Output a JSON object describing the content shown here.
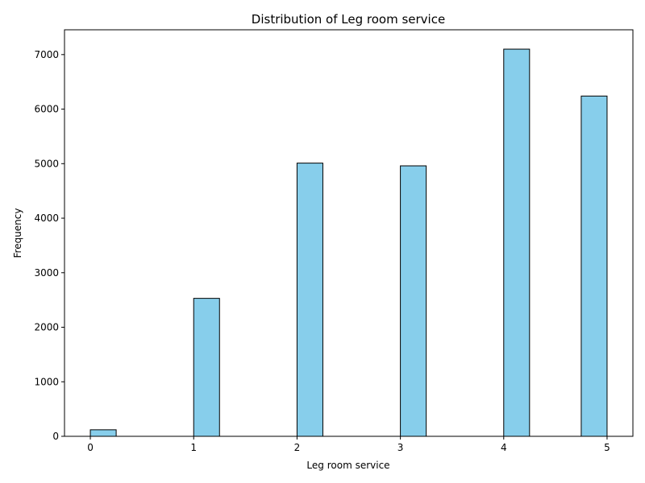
{
  "chart_data": {
    "type": "bar",
    "title": "Distribution of Leg room service",
    "xlabel": "Leg room service",
    "ylabel": "Frequency",
    "bin_edges": [
      0,
      0.25,
      0.5,
      0.75,
      1,
      1.25,
      1.5,
      1.75,
      2,
      2.25,
      2.5,
      2.75,
      3,
      3.25,
      3.5,
      3.75,
      4,
      4.25,
      4.5,
      4.75,
      5
    ],
    "values": [
      120,
      0,
      0,
      0,
      2530,
      0,
      0,
      0,
      5010,
      0,
      0,
      0,
      4960,
      0,
      0,
      0,
      7100,
      0,
      0,
      6240
    ],
    "xlim": [
      -0.25,
      5.25
    ],
    "ylim": [
      0,
      7455
    ],
    "xticks": [
      0,
      1,
      2,
      3,
      4,
      5
    ],
    "yticks": [
      0,
      1000,
      2000,
      3000,
      4000,
      5000,
      6000,
      7000
    ],
    "bar_color": "#87ceeb",
    "edge_color": "#000000",
    "grid": false,
    "legend": "none"
  }
}
